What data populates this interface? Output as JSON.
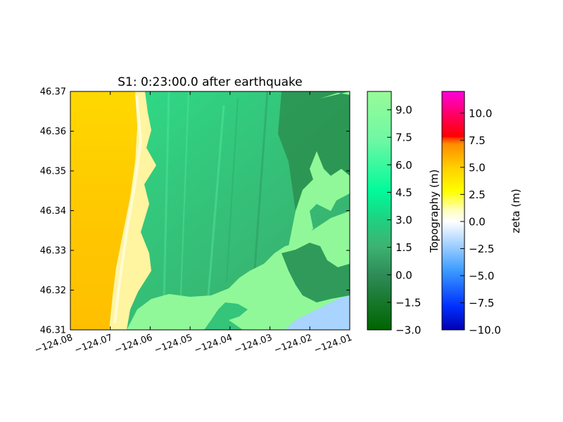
{
  "chart_data": {
    "type": "heatmap",
    "title": "S1: 0:23:00.0 after earthquake",
    "xlim": [
      -124.08,
      -124.01
    ],
    "ylim": [
      46.31,
      46.37
    ],
    "x_ticks": [
      "−124.08",
      "−124.07",
      "−124.06",
      "−124.05",
      "−124.04",
      "−124.03",
      "−124.02",
      "−124.01"
    ],
    "x_tick_values": [
      -124.08,
      -124.07,
      -124.06,
      -124.05,
      -124.04,
      -124.03,
      -124.02,
      -124.01
    ],
    "y_ticks": [
      "46.31",
      "46.32",
      "46.33",
      "46.34",
      "46.35",
      "46.36",
      "46.37"
    ],
    "y_tick_values": [
      46.31,
      46.32,
      46.33,
      46.34,
      46.35,
      46.36,
      46.37
    ],
    "colorbars": [
      {
        "label": "Topography (m)",
        "range": [
          -3.0,
          10.0
        ],
        "ticks": [
          "−3.0",
          "−1.5",
          "0.0",
          "1.5",
          "3.0",
          "4.5",
          "6.0",
          "7.5",
          "9.0"
        ],
        "tick_values": [
          -3.0,
          -1.5,
          0.0,
          1.5,
          3.0,
          4.5,
          6.0,
          7.5,
          9.0
        ],
        "colors": [
          "#006400",
          "#3cb371",
          "#00fa9a",
          "#7fffa0",
          "#98fb98"
        ]
      },
      {
        "label": "zeta (m)",
        "range": [
          -10.0,
          12.0
        ],
        "ticks": [
          "−10.0",
          "−7.5",
          "−5.0",
          "−2.5",
          "0.0",
          "2.5",
          "5.0",
          "7.5",
          "10.0"
        ],
        "tick_values": [
          -10.0,
          -7.5,
          -5.0,
          -2.5,
          0.0,
          2.5,
          5.0,
          7.5,
          10.0
        ],
        "colors": [
          "#0000cd",
          "#0066ff",
          "#3ca0ff",
          "#a0d0ff",
          "#ffffff",
          "#ffff40",
          "#ffd000",
          "#ff8c00",
          "#ff4500",
          "#ff0040",
          "#ff00cc"
        ]
      }
    ],
    "regions": [
      "water-surface-offshore",
      "dune-strip",
      "low-lying-land",
      "inland-high-ground",
      "river-inlet"
    ]
  }
}
